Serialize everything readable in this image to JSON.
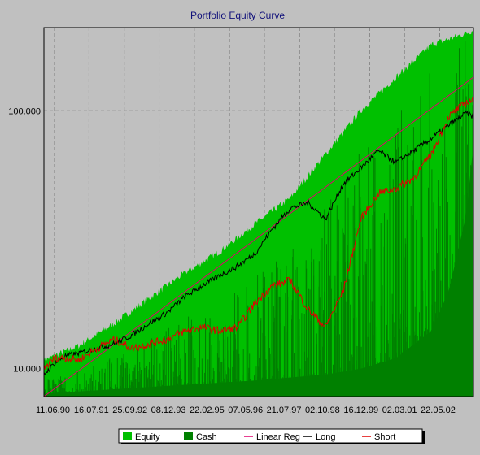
{
  "chart_data": {
    "type": "area",
    "title": "Portfolio Equity Curve",
    "xlabel": "",
    "ylabel": "",
    "y_scale": "log",
    "ylim": [
      7.8,
      210
    ],
    "y_ticks": [
      {
        "value": 10,
        "label": "10.000"
      },
      {
        "value": 100,
        "label": "100.000"
      }
    ],
    "x_tick_labels": [
      "11.06.90",
      "16.07.91",
      "25.09.92",
      "08.12.93",
      "22.02.95",
      "07.05.96",
      "21.07.97",
      "02.10.98",
      "16.12.99",
      "02.03.01",
      "22.05.02"
    ],
    "grid": true,
    "legend_position": "bottom",
    "colors": {
      "background": "#c0c0c0",
      "plot_background": "#c0c0c0",
      "equity": "#00c000",
      "cash": "#008000",
      "linear_reg": "#e0006e",
      "long": "#000000",
      "short": "#e00000",
      "grid": "#808080"
    },
    "legend": [
      {
        "name": "Equity",
        "kind": "box",
        "color": "#00c000"
      },
      {
        "name": "Cash",
        "kind": "box",
        "color": "#008000"
      },
      {
        "name": "Linear Reg",
        "kind": "line",
        "color": "#e0006e"
      },
      {
        "name": "Long",
        "kind": "line",
        "color": "#000000"
      },
      {
        "name": "Short",
        "kind": "line",
        "color": "#e00000"
      }
    ],
    "series": [
      {
        "name": "Equity",
        "x": [
          0,
          1,
          2,
          3,
          4,
          5,
          6,
          7,
          8,
          9,
          10,
          11,
          12,
          12.2
        ],
        "values": [
          10.8,
          12.3,
          15.0,
          18.8,
          23.5,
          28.5,
          36.5,
          46.0,
          68.0,
          100.0,
          135.0,
          180.0,
          200.0,
          205.0
        ]
      },
      {
        "name": "Cash",
        "x": [
          0,
          3,
          6,
          8,
          9,
          10,
          11,
          11.5,
          12,
          12.2
        ],
        "values": [
          8.0,
          8.5,
          9.0,
          9.5,
          10.0,
          11.0,
          14.0,
          20.0,
          40.0,
          75.0
        ]
      },
      {
        "name": "Linear Reg",
        "x": [
          0,
          12.2
        ],
        "values": [
          7.8,
          135.0
        ]
      },
      {
        "name": "Long",
        "x": [
          0,
          0.3,
          0.6,
          1,
          1.5,
          2,
          2.5,
          3,
          3.5,
          4,
          4.5,
          5,
          5.5,
          6,
          6.5,
          7,
          7.5,
          8,
          8.5,
          9,
          9.5,
          10,
          10.5,
          11,
          11.5,
          12,
          12.2
        ],
        "values": [
          9.5,
          10.5,
          11.2,
          11.5,
          12.0,
          12.5,
          13.5,
          15.0,
          16.5,
          19.0,
          21.0,
          23.0,
          25.0,
          28.0,
          35.0,
          42.0,
          44.0,
          38.0,
          52.0,
          60.0,
          70.0,
          63.0,
          70.0,
          78.0,
          88.0,
          98.0,
          95.0
        ]
      },
      {
        "name": "Short",
        "x": [
          0,
          0.3,
          0.6,
          1,
          1.5,
          2,
          2.5,
          3,
          3.5,
          4,
          4.5,
          5,
          5.5,
          6,
          6.5,
          7,
          7.5,
          8,
          8.5,
          9,
          9.5,
          10,
          10.5,
          11,
          11.5,
          12,
          12.2
        ],
        "values": [
          10.0,
          11.0,
          11.0,
          10.8,
          12.0,
          13.0,
          12.0,
          12.5,
          13.0,
          14.0,
          14.5,
          14.0,
          14.5,
          18.0,
          21.0,
          22.0,
          17.0,
          14.5,
          20.0,
          38.0,
          48.0,
          50.0,
          55.0,
          68.0,
          95.0,
          108.0,
          110.0
        ]
      }
    ]
  }
}
